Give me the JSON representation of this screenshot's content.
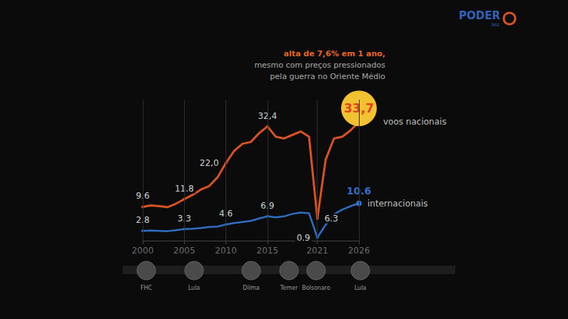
{
  "chart_data": {
    "type": "line",
    "logo": [
      "PODER",
      "360"
    ],
    "annotation": [
      "alta de 7,6% em 1 ano,",
      "mesmo com preços pressionados",
      "pela guerra no Oriente Médio"
    ],
    "x": [
      2000,
      2001,
      2002,
      2003,
      2004,
      2005,
      2006,
      2007,
      2008,
      2009,
      2010,
      2011,
      2012,
      2013,
      2014,
      2015,
      2016,
      2017,
      2018,
      2019,
      2020,
      2021,
      2022,
      2023,
      2024,
      2025,
      2026
    ],
    "xlim": [
      2000,
      2026
    ],
    "xticks": [
      2000,
      2005,
      2010,
      2015,
      2021,
      2026
    ],
    "ylim": [
      0,
      40
    ],
    "tick_labels": "x",
    "grid": true,
    "data_labels": true,
    "series": [
      {
        "name": "voos nacionais",
        "color": "#d8531f",
        "values": [
          9.6,
          10.0,
          9.8,
          9.5,
          10.5,
          11.8,
          13.0,
          14.5,
          15.5,
          18.0,
          22.0,
          25.5,
          27.5,
          28.0,
          30.5,
          32.4,
          29.5,
          29.0,
          30.0,
          31.0,
          29.5,
          6.3,
          23.0,
          29.0,
          29.5,
          31.3,
          33.7
        ],
        "value_labels": [
          "9.6",
          null,
          null,
          null,
          null,
          "11.8",
          null,
          null,
          null,
          null,
          "22,0",
          null,
          null,
          null,
          null,
          "32,4",
          null,
          null,
          null,
          null,
          null,
          "6.3",
          null,
          null,
          null,
          null,
          "33,7"
        ]
      },
      {
        "name": "internacionais",
        "color": "#2f6fc4",
        "values": [
          2.8,
          2.9,
          2.8,
          2.7,
          3.0,
          3.3,
          3.4,
          3.6,
          3.9,
          4.0,
          4.6,
          5.0,
          5.3,
          5.6,
          6.3,
          6.9,
          6.6,
          6.9,
          7.6,
          8.0,
          7.8,
          0.9,
          4.5,
          7.5,
          8.8,
          9.8,
          10.6
        ],
        "value_labels": [
          "2.8",
          null,
          null,
          null,
          null,
          "3.3",
          null,
          null,
          null,
          null,
          "4.6",
          null,
          null,
          null,
          null,
          "6.9",
          null,
          null,
          null,
          null,
          null,
          "0.9",
          null,
          null,
          null,
          null,
          "10.6"
        ]
      }
    ],
    "presidents": [
      "FHC",
      "Lula",
      "Dilma",
      "Temer",
      "Bolsonaro",
      "Lula"
    ]
  }
}
